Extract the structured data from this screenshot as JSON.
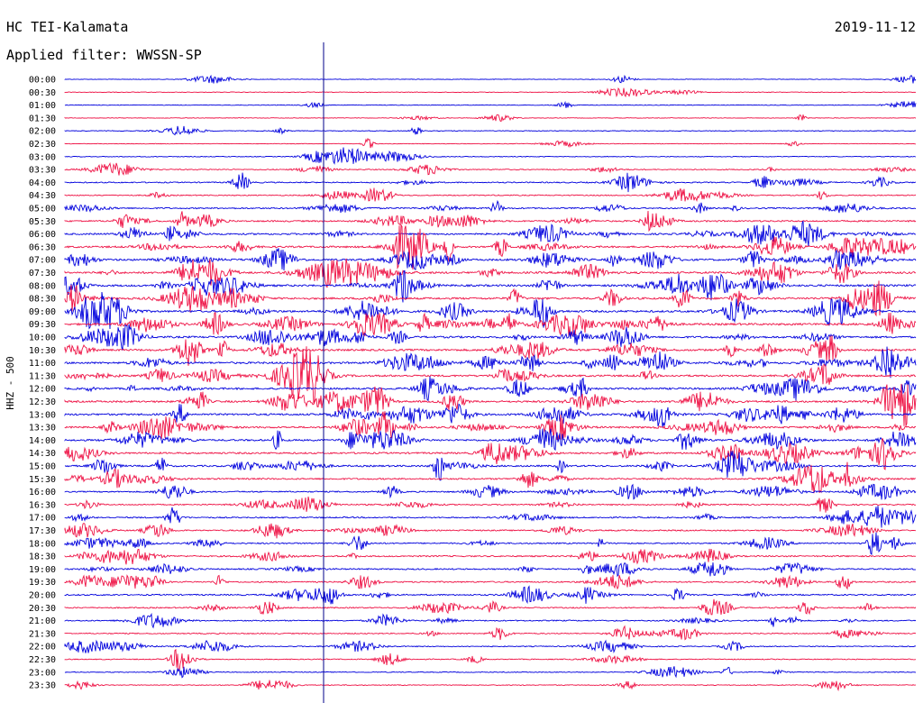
{
  "header": {
    "station": "HC TEI-Kalamata",
    "date": "2019-11-12",
    "filter": "Applied filter: WWSSN-SP"
  },
  "chart_data": {
    "type": "helicorder",
    "ylabel": "HHZ - 500",
    "row_labels": [
      "00:00",
      "00:30",
      "01:00",
      "01:30",
      "02:00",
      "02:30",
      "03:00",
      "03:30",
      "04:00",
      "04:30",
      "05:00",
      "05:30",
      "06:00",
      "06:30",
      "07:00",
      "07:30",
      "08:00",
      "08:30",
      "09:00",
      "09:30",
      "10:00",
      "10:30",
      "11:00",
      "11:30",
      "12:00",
      "12:30",
      "13:00",
      "13:30",
      "14:00",
      "14:30",
      "15:00",
      "15:30",
      "16:00",
      "16:30",
      "17:00",
      "17:30",
      "18:00",
      "18:30",
      "19:00",
      "19:30",
      "20:00",
      "20:30",
      "21:00",
      "21:30",
      "22:00",
      "22:30",
      "23:00",
      "23:30"
    ],
    "trace_colors": [
      "#0000dd",
      "#ee1144"
    ],
    "marker_color": "#000088",
    "activity": [
      0.05,
      0.08,
      0.1,
      0.08,
      0.12,
      0.08,
      0.15,
      0.3,
      0.4,
      0.35,
      0.5,
      0.6,
      0.7,
      0.75,
      0.8,
      0.85,
      0.85,
      0.85,
      0.9,
      0.9,
      0.85,
      0.85,
      0.85,
      0.8,
      0.8,
      0.8,
      0.8,
      0.75,
      0.75,
      0.7,
      0.7,
      0.6,
      0.5,
      0.45,
      0.5,
      0.45,
      0.5,
      0.5,
      0.5,
      0.5,
      0.5,
      0.45,
      0.4,
      0.35,
      0.3,
      0.25,
      0.2,
      0.2
    ]
  }
}
